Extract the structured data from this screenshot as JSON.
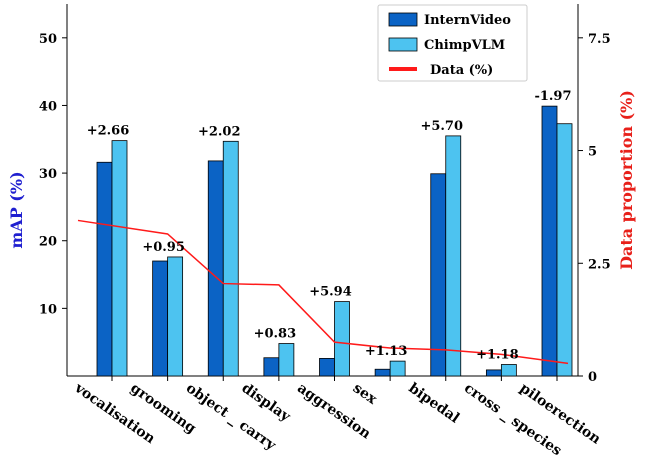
{
  "chart_data": {
    "type": "bar",
    "title": "",
    "xlabel": "",
    "ylabel": "mAP (%)",
    "y2label": "Data proportion (%)",
    "categories": [
      "vocalisation",
      "grooming",
      "object _ carry",
      "display",
      "aggression",
      "sex",
      "bipedal",
      "cross _ species",
      "piloerection"
    ],
    "series": [
      {
        "name": "InternVideo",
        "values": [
          31.6,
          17.0,
          31.8,
          2.7,
          2.6,
          1.0,
          29.9,
          0.9,
          39.9
        ]
      },
      {
        "name": "ChimpVLM",
        "values": [
          34.8,
          17.6,
          34.7,
          4.8,
          11.0,
          2.2,
          35.5,
          1.7,
          37.3
        ]
      }
    ],
    "line_series": {
      "name": "Data (%)",
      "axis": "right",
      "values": [
        3.45,
        3.15,
        2.05,
        2.02,
        0.75,
        0.62,
        0.58,
        0.48,
        0.28
      ]
    },
    "annotations": [
      "+2.66",
      "+0.95",
      "+2.02",
      "+0.83",
      "+5.94",
      "+1.13",
      "+5.70",
      "+1.18",
      "-1.97"
    ],
    "ylim": [
      0,
      55
    ],
    "y2lim": [
      0,
      8.25
    ],
    "yticks": [
      "10",
      "20",
      "30",
      "40",
      "50"
    ],
    "y2ticks": [
      "0",
      "2.5",
      "5",
      "7.5"
    ],
    "legend_position": "top-right",
    "colors": {
      "InternVideo": "#0b63c5",
      "ChimpVLM": "#4dc3f0",
      "Data (%)": "#ff1a1a",
      "ylabel": "#1f1fd0",
      "y2label": "#e8201a"
    }
  }
}
